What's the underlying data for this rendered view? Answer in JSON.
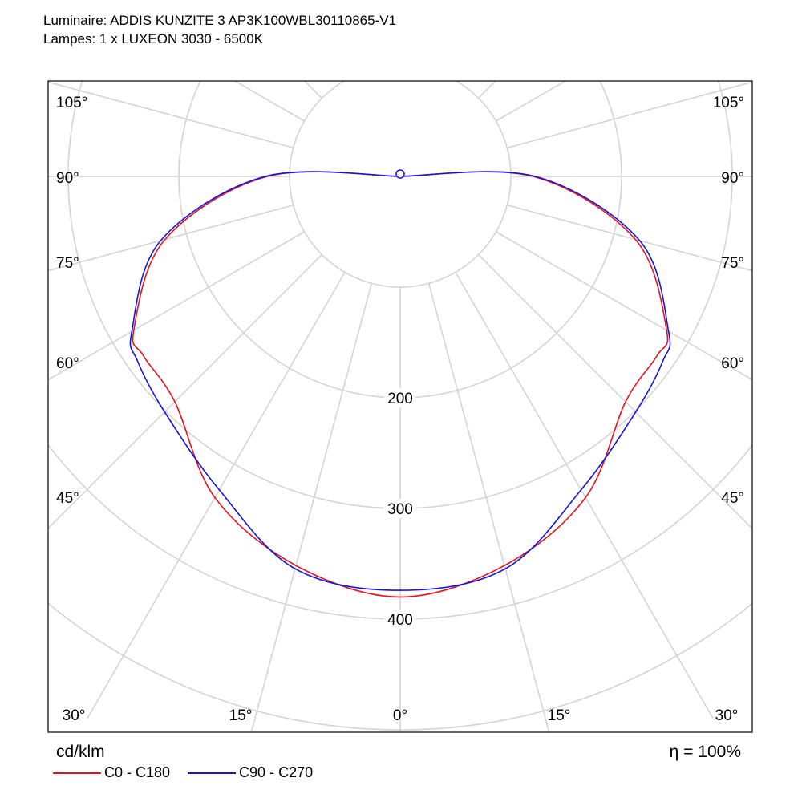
{
  "header": {
    "luminaire": "Luminaire: ADDIS KUNZITE 3 AP3K100WBL30110865-V1",
    "lamps": "Lampes: 1 x LUXEON 3030 - 6500K"
  },
  "footer": {
    "unit": "cd/klm",
    "efficiency": "η = 100%"
  },
  "chart_data": {
    "type": "polar",
    "unit": "cd/klm",
    "angle_tick_labels": [
      "0°",
      "15°",
      "30°",
      "45°",
      "60°",
      "75°",
      "90°",
      "105°"
    ],
    "radial_tick_labels": [
      "200",
      "300",
      "400"
    ],
    "radial_ticks": [
      200,
      300,
      400
    ],
    "grid": true,
    "legend": "bottom-left",
    "series": [
      {
        "name": "C0 - C180",
        "color": "#e8141c",
        "points": [
          {
            "angle": 0,
            "value": 380
          },
          {
            "angle": 15,
            "value": 364
          },
          {
            "angle": 30,
            "value": 335
          },
          {
            "angle": 45,
            "value": 288
          },
          {
            "angle": 55,
            "value": 283
          },
          {
            "angle": 60,
            "value": 278
          },
          {
            "angle": 75,
            "value": 220
          },
          {
            "angle": 90,
            "value": 120
          },
          {
            "angle": 105,
            "value": 0
          }
        ]
      },
      {
        "name": "C90 - C270",
        "color": "#1414e0",
        "points": [
          {
            "angle": 0,
            "value": 374
          },
          {
            "angle": 15,
            "value": 367
          },
          {
            "angle": 30,
            "value": 327
          },
          {
            "angle": 45,
            "value": 301
          },
          {
            "angle": 55,
            "value": 290
          },
          {
            "angle": 60,
            "value": 280
          },
          {
            "angle": 75,
            "value": 224
          },
          {
            "angle": 90,
            "value": 122
          },
          {
            "angle": 105,
            "value": 0
          }
        ]
      }
    ]
  }
}
